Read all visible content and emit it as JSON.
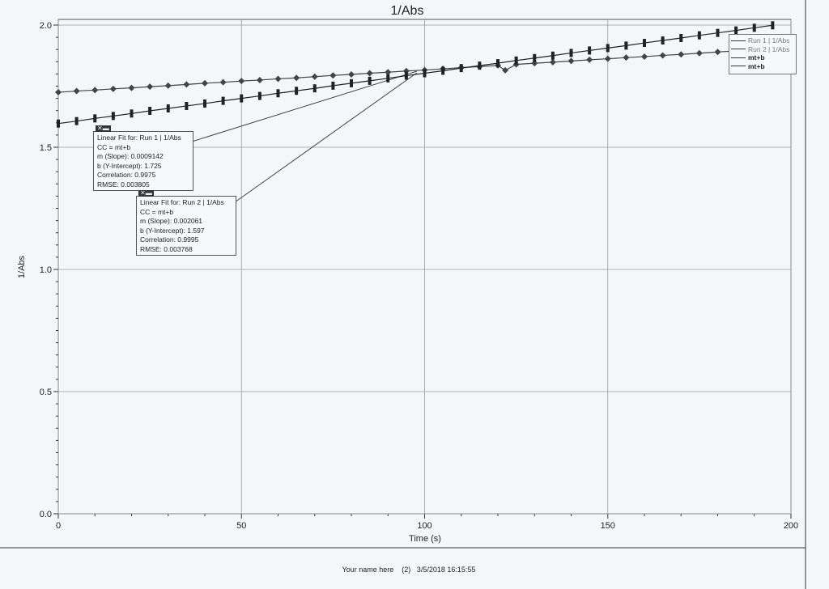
{
  "chart_data": {
    "type": "scatter",
    "title": "1/Abs",
    "xlabel": "Time (s)",
    "ylabel": "1/Abs",
    "xlim": [
      0,
      200
    ],
    "ylim": [
      0,
      2.0
    ],
    "xticks": [
      "0",
      "50",
      "100",
      "150",
      "200"
    ],
    "yticks": [
      "0.0",
      "0.5",
      "1.0",
      "1.5",
      "2.0"
    ],
    "grid": true,
    "legend_position": "top-right",
    "series": [
      {
        "name": "Run 1 | 1/Abs",
        "marker": "diamond",
        "color": "#444444",
        "x": [
          0,
          5,
          10,
          15,
          20,
          25,
          30,
          35,
          40,
          45,
          50,
          55,
          60,
          65,
          70,
          75,
          80,
          85,
          90,
          95,
          100,
          105,
          110,
          115,
          120,
          122,
          125,
          130,
          135,
          140,
          145,
          150,
          155,
          160,
          165,
          170,
          175,
          180,
          185,
          190,
          195
        ],
        "y": [
          1.725,
          1.73,
          1.734,
          1.739,
          1.743,
          1.748,
          1.752,
          1.757,
          1.762,
          1.766,
          1.771,
          1.775,
          1.78,
          1.784,
          1.789,
          1.794,
          1.798,
          1.803,
          1.807,
          1.812,
          1.816,
          1.821,
          1.826,
          1.83,
          1.835,
          1.815,
          1.839,
          1.844,
          1.848,
          1.853,
          1.858,
          1.862,
          1.867,
          1.871,
          1.876,
          1.88,
          1.885,
          1.89,
          1.894,
          1.899,
          1.903
        ]
      },
      {
        "name": "Run 2 | 1/Abs",
        "marker": "bar",
        "color": "#222222",
        "x": [
          0,
          5,
          10,
          15,
          20,
          25,
          30,
          35,
          40,
          45,
          50,
          55,
          60,
          65,
          70,
          75,
          80,
          85,
          90,
          95,
          100,
          105,
          110,
          115,
          120,
          125,
          130,
          135,
          140,
          145,
          150,
          155,
          160,
          165,
          170,
          175,
          180,
          185,
          190,
          195
        ],
        "y": [
          1.597,
          1.607,
          1.618,
          1.628,
          1.638,
          1.649,
          1.659,
          1.669,
          1.679,
          1.69,
          1.7,
          1.71,
          1.721,
          1.731,
          1.741,
          1.752,
          1.762,
          1.772,
          1.782,
          1.793,
          1.803,
          1.813,
          1.824,
          1.834,
          1.844,
          1.855,
          1.865,
          1.875,
          1.886,
          1.896,
          1.906,
          1.916,
          1.927,
          1.937,
          1.947,
          1.958,
          1.968,
          1.978,
          1.989,
          1.999
        ]
      },
      {
        "name": "mt+b",
        "type": "line"
      },
      {
        "name": "mt+b",
        "type": "line"
      }
    ],
    "annotations": [
      {
        "lines": [
          "Linear Fit for: Run 1 | 1/Abs",
          "CC = mt+b",
          "m (Slope): 0.0009142",
          "b (Y-Intercept): 1.725",
          "Correlation: 0.9975",
          "RMSE: 0.003805"
        ]
      },
      {
        "lines": [
          "Linear Fit for: Run 2 | 1/Abs",
          "CC = mt+b",
          "m (Slope): 0.002061",
          "b (Y-Intercept): 1.597",
          "Correlation: 0.9995",
          "RMSE: 0.003768"
        ]
      }
    ]
  },
  "footer": "Your name here    (2)   3/5/2018 16:15:55"
}
